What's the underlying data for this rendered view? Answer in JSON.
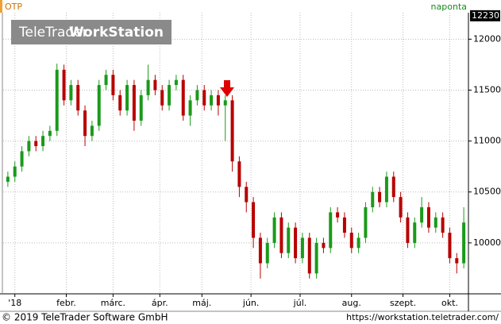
{
  "chart_data": {
    "type": "candlestick",
    "symbol": "OTP",
    "interval": "naponta",
    "logo": {
      "regular": "TeleTrader",
      "bold": "WorkStation"
    },
    "top_label": {
      "value": 12230,
      "label": "12230"
    },
    "footer_left": "© 2019 TeleTrader Software GmbH",
    "footer_right": "https://workstation.teletrader.com/",
    "x": [
      0,
      3,
      6,
      9,
      12,
      15,
      18,
      21,
      24,
      27,
      30,
      33,
      36,
      39,
      42,
      45,
      48,
      51,
      54,
      57,
      60,
      63,
      66,
      69,
      72,
      75,
      78,
      81,
      84,
      87,
      90,
      93,
      96,
      99,
      102,
      105,
      108,
      111,
      114,
      117,
      120,
      123,
      126,
      129,
      132,
      135,
      138,
      141,
      144,
      147,
      150,
      153,
      156,
      159,
      162,
      165,
      168,
      171,
      174,
      177,
      180,
      183,
      186,
      189,
      192,
      195
    ],
    "open": [
      10600,
      10650,
      10750,
      10900,
      11000,
      10950,
      11050,
      11100,
      11700,
      11400,
      11550,
      11300,
      11050,
      11150,
      11550,
      11650,
      11450,
      11300,
      11550,
      11200,
      11450,
      11600,
      11500,
      11350,
      11550,
      11600,
      11250,
      11400,
      11500,
      11350,
      11450,
      11350,
      11400,
      10800,
      10550,
      10400,
      10050,
      9800,
      10000,
      10250,
      9900,
      10150,
      9850,
      10050,
      9700,
      10000,
      9950,
      10300,
      10250,
      10100,
      9950,
      10050,
      10350,
      10500,
      10400,
      10650,
      10450,
      10250,
      10000,
      10200,
      10350,
      10150,
      10250,
      10100,
      9850,
      9800
    ],
    "high": [
      10700,
      10800,
      10950,
      11050,
      11050,
      11100,
      11150,
      11760,
      11750,
      11600,
      11600,
      11350,
      11200,
      11600,
      11700,
      11700,
      11500,
      11600,
      11600,
      11500,
      11750,
      11650,
      11550,
      11600,
      11650,
      11650,
      11450,
      11550,
      11550,
      11500,
      11500,
      11450,
      11450,
      10850,
      10600,
      10450,
      10100,
      10050,
      10300,
      10300,
      10200,
      10200,
      10100,
      10100,
      10050,
      10050,
      10350,
      10350,
      10300,
      10150,
      10100,
      10400,
      10550,
      10550,
      10700,
      10700,
      10500,
      10300,
      10250,
      10450,
      10400,
      10300,
      10300,
      10150,
      9900,
      10350
    ],
    "low": [
      10550,
      10600,
      10700,
      10850,
      10900,
      10900,
      11000,
      11050,
      11350,
      11350,
      11250,
      10950,
      11000,
      11100,
      11500,
      11400,
      11250,
      11250,
      11100,
      11150,
      11400,
      11450,
      11300,
      11300,
      11500,
      11200,
      11150,
      11350,
      11300,
      11300,
      11250,
      11000,
      10700,
      10450,
      10300,
      9950,
      9650,
      9750,
      9950,
      9850,
      9850,
      9800,
      9800,
      9650,
      9650,
      9900,
      9900,
      10200,
      10050,
      9900,
      9900,
      10000,
      10300,
      10350,
      10350,
      10400,
      10200,
      9950,
      9950,
      10150,
      10100,
      10100,
      10050,
      9800,
      9700,
      9750
    ],
    "close": [
      10650,
      10750,
      10900,
      11000,
      10950,
      11050,
      11100,
      11700,
      11400,
      11550,
      11300,
      11050,
      11150,
      11550,
      11650,
      11450,
      11300,
      11550,
      11200,
      11450,
      11600,
      11500,
      11350,
      11550,
      11600,
      11250,
      11400,
      11500,
      11350,
      11450,
      11350,
      11400,
      10800,
      10550,
      10400,
      10050,
      9800,
      10000,
      10250,
      9900,
      10150,
      9850,
      10050,
      9700,
      10000,
      9950,
      10300,
      10250,
      10100,
      9950,
      10050,
      10350,
      10500,
      10400,
      10650,
      10450,
      10250,
      10000,
      10200,
      10350,
      10150,
      10250,
      10100,
      9850,
      9800,
      10200
    ],
    "up_color": "#1a9a1a",
    "down_color": "#b80000",
    "xlim": [
      -2,
      197
    ],
    "xticks": [
      {
        "value": 3,
        "label": "'18"
      },
      {
        "value": 25,
        "label": "febr."
      },
      {
        "value": 45,
        "label": "márc."
      },
      {
        "value": 65,
        "label": "ápr."
      },
      {
        "value": 83,
        "label": "máj."
      },
      {
        "value": 104,
        "label": "jún."
      },
      {
        "value": 125,
        "label": "júl."
      },
      {
        "value": 147,
        "label": "aug."
      },
      {
        "value": 169,
        "label": "szept."
      },
      {
        "value": 189,
        "label": "okt."
      }
    ],
    "ylim": [
      9500,
      12260
    ],
    "yticks": [
      10000,
      10500,
      11000,
      11500,
      12000
    ],
    "grid": true
  }
}
